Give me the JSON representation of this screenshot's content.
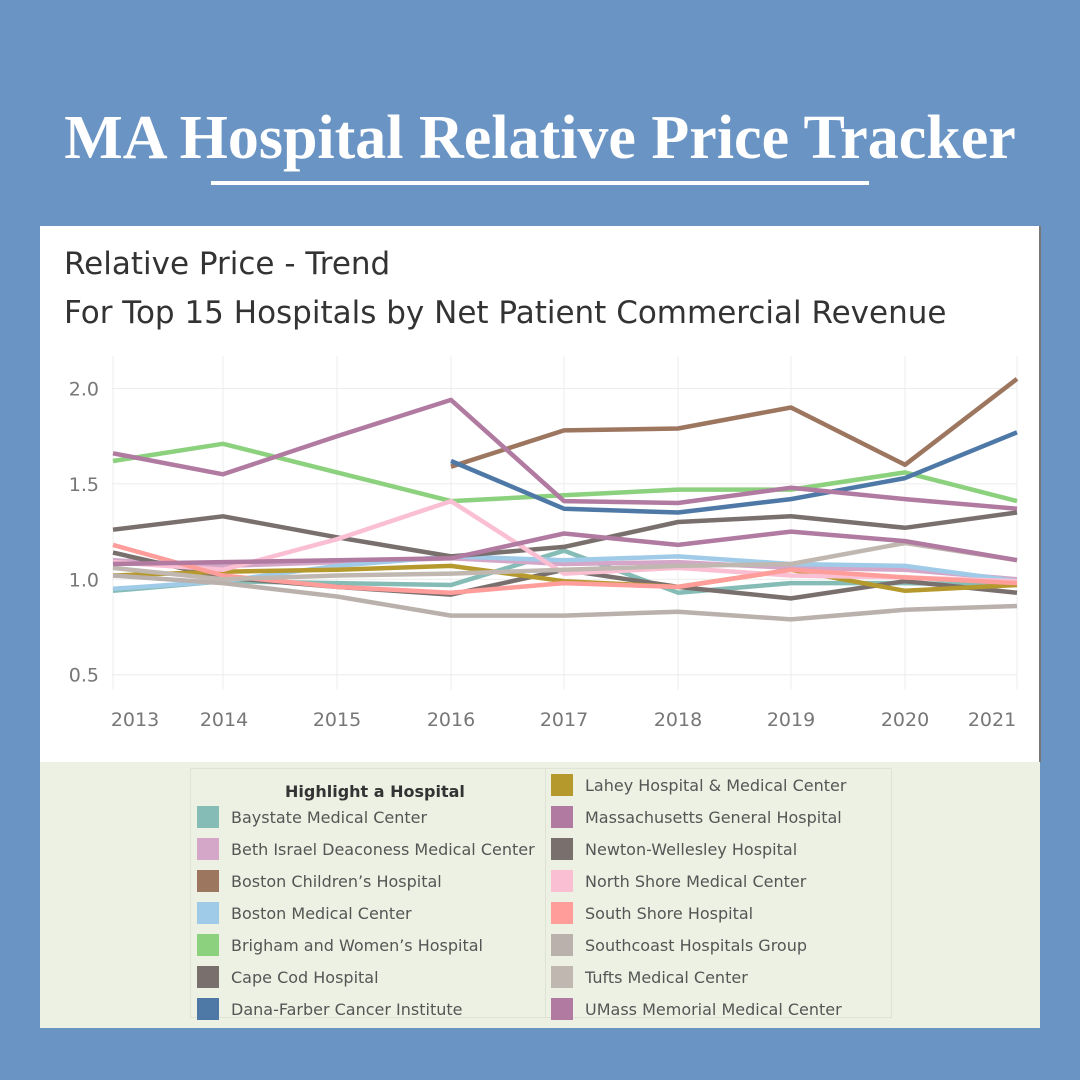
{
  "page": {
    "title": "MA Hospital Relative Price Tracker",
    "background": "#6a94c4"
  },
  "chart_data": {
    "type": "line",
    "title": "Relative Price - Trend",
    "subtitle": "For Top 15 Hospitals by Net Patient Commercial Revenue",
    "xlabel": "",
    "ylabel": "",
    "x": [
      2013,
      2014,
      2015,
      2016,
      2017,
      2018,
      2019,
      2020,
      2021
    ],
    "x_ticks": [
      "2013",
      "2014",
      "2015",
      "2016",
      "2017",
      "2018",
      "2019",
      "2020",
      "2021"
    ],
    "y_ticks": [
      "2.0",
      "1.5",
      "1.0",
      "0.5"
    ],
    "ylim": [
      0.42,
      2.17
    ],
    "grid": true,
    "legend_title": "Highlight a Hospital",
    "legend_placement": "bottom",
    "series": [
      {
        "name": "Baystate Medical Center",
        "color": "#86bcb6",
        "values": [
          0.94,
          0.99,
          0.98,
          0.97,
          1.15,
          0.93,
          0.98,
          0.98,
          0.97
        ]
      },
      {
        "name": "Beth Israel Deaconess Medical Center",
        "color": "#d4a6c8",
        "values": [
          1.1,
          1.07,
          1.09,
          1.11,
          1.08,
          1.09,
          1.06,
          1.05,
          1.0
        ]
      },
      {
        "name": "Boston Children’s Hospital",
        "color": "#9d7660",
        "values": [
          null,
          null,
          null,
          1.59,
          1.78,
          1.79,
          1.9,
          1.6,
          2.05
        ]
      },
      {
        "name": "Boston Medical Center",
        "color": "#a0cbe8",
        "values": [
          0.95,
          0.99,
          1.07,
          1.12,
          1.1,
          1.12,
          1.08,
          1.07,
          0.99
        ]
      },
      {
        "name": "Brigham and Women’s Hospital",
        "color": "#8cd17d",
        "values": [
          1.62,
          1.71,
          1.56,
          1.41,
          1.44,
          1.47,
          1.47,
          1.56,
          1.41
        ]
      },
      {
        "name": "Cape Cod Hospital",
        "color": "#79706e",
        "values": [
          1.14,
          1.01,
          0.96,
          0.92,
          1.05,
          0.96,
          0.9,
          0.99,
          0.93
        ]
      },
      {
        "name": "Dana-Farber Cancer Institute",
        "color": "#4e79a7",
        "values": [
          null,
          null,
          null,
          1.62,
          1.37,
          1.35,
          1.42,
          1.53,
          1.77
        ]
      },
      {
        "name": "Lahey Hospital & Medical Center",
        "color": "#b6992d",
        "values": [
          1.02,
          1.04,
          1.05,
          1.07,
          0.99,
          0.96,
          1.05,
          0.94,
          0.97
        ]
      },
      {
        "name": "Massachusetts General Hospital",
        "color": "#b07aa1",
        "values": [
          1.66,
          1.55,
          1.75,
          1.94,
          1.41,
          1.4,
          1.48,
          1.42,
          1.37
        ]
      },
      {
        "name": "Newton-Wellesley Hospital",
        "color": "#79706e",
        "values": [
          1.26,
          1.33,
          1.22,
          1.12,
          1.17,
          1.3,
          1.33,
          1.27,
          1.35
        ]
      },
      {
        "name": "North Shore Medical Center",
        "color": "#fabfd2",
        "values": [
          1.09,
          1.05,
          1.21,
          1.41,
          1.03,
          1.06,
          1.02,
          1.01,
          0.99
        ]
      },
      {
        "name": "South Shore Hospital",
        "color": "#ff9d9a",
        "values": [
          1.18,
          1.02,
          0.96,
          0.93,
          0.98,
          0.96,
          1.05,
          1.01,
          0.98
        ]
      },
      {
        "name": "Southcoast Hospitals Group",
        "color": "#bab0ac",
        "values": [
          1.02,
          0.98,
          0.91,
          0.81,
          0.81,
          0.83,
          0.79,
          0.84,
          0.86
        ]
      },
      {
        "name": "Tufts Medical Center",
        "color": "#c0b7b0",
        "values": [
          1.06,
          1.0,
          1.02,
          1.03,
          1.05,
          1.07,
          1.08,
          1.19,
          1.1
        ]
      },
      {
        "name": "UMass Memorial Medical Center",
        "color": "#b07aa1",
        "values": [
          1.08,
          1.09,
          1.1,
          1.11,
          1.24,
          1.18,
          1.25,
          1.2,
          1.1
        ]
      }
    ]
  }
}
